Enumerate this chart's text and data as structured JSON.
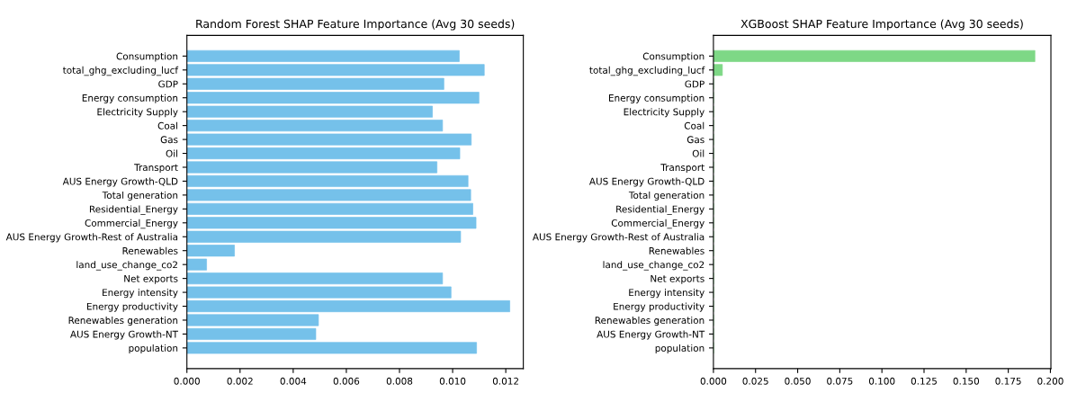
{
  "chart_data": [
    {
      "type": "bar",
      "orientation": "horizontal",
      "title": "Random Forest SHAP Feature Importance (Avg 30 seeds)",
      "categories": [
        "Consumption",
        "total_ghg_excluding_lucf",
        "GDP",
        "Energy consumption",
        "Electricity Supply",
        "Coal",
        "Gas",
        "Oil",
        "Transport",
        "AUS Energy Growth-QLD",
        "Total generation",
        "Residential_Energy",
        "Commercial_Energy",
        "AUS Energy Growth-Rest of Australia",
        "Renewables",
        "land_use_change_co2",
        "Net exports",
        "Energy intensity",
        "Energy productivity",
        "Renewables generation",
        "AUS Energy Growth-NT",
        "population"
      ],
      "values": [
        0.01025,
        0.01119,
        0.00967,
        0.01099,
        0.00924,
        0.00962,
        0.0107,
        0.01027,
        0.00941,
        0.01058,
        0.01068,
        0.01076,
        0.01088,
        0.0103,
        0.00179,
        0.00074,
        0.00962,
        0.00994,
        0.01215,
        0.00495,
        0.00485,
        0.0109
      ],
      "color": "#75c1ea",
      "xlim": [
        0,
        0.01266
      ],
      "xticks": [
        {
          "value": 0,
          "label": "0.000"
        },
        {
          "value": 0.002,
          "label": "0.002"
        },
        {
          "value": 0.004,
          "label": "0.004"
        },
        {
          "value": 0.006,
          "label": "0.006"
        },
        {
          "value": 0.008,
          "label": "0.008"
        },
        {
          "value": 0.01,
          "label": "0.010"
        },
        {
          "value": 0.012,
          "label": "0.012"
        }
      ],
      "grid": false,
      "legend": false
    },
    {
      "type": "bar",
      "orientation": "horizontal",
      "title": "XGBoost SHAP Feature Importance (Avg 30 seeds)",
      "categories": [
        "Consumption",
        "total_ghg_excluding_lucf",
        "GDP",
        "Energy consumption",
        "Electricity Supply",
        "Coal",
        "Gas",
        "Oil",
        "Transport",
        "AUS Energy Growth-QLD",
        "Total generation",
        "Residential_Energy",
        "Commercial_Energy",
        "AUS Energy Growth-Rest of Australia",
        "Renewables",
        "land_use_change_co2",
        "Net exports",
        "Energy intensity",
        "Energy productivity",
        "Renewables generation",
        "AUS Energy Growth-NT",
        "population"
      ],
      "values": [
        0.1908,
        0.0053,
        0,
        0,
        0,
        0,
        0,
        0,
        0,
        0,
        0,
        0,
        0,
        0,
        0,
        0,
        0,
        0,
        0,
        0,
        0,
        0
      ],
      "color": "#7ed886",
      "xlim": [
        0,
        0.2003
      ],
      "xticks": [
        {
          "value": 0,
          "label": "0.000"
        },
        {
          "value": 0.025,
          "label": "0.025"
        },
        {
          "value": 0.05,
          "label": "0.050"
        },
        {
          "value": 0.075,
          "label": "0.075"
        },
        {
          "value": 0.1,
          "label": "0.100"
        },
        {
          "value": 0.125,
          "label": "0.125"
        },
        {
          "value": 0.15,
          "label": "0.150"
        },
        {
          "value": 0.175,
          "label": "0.175"
        },
        {
          "value": 0.2,
          "label": "0.200"
        }
      ],
      "grid": false,
      "legend": false
    }
  ]
}
